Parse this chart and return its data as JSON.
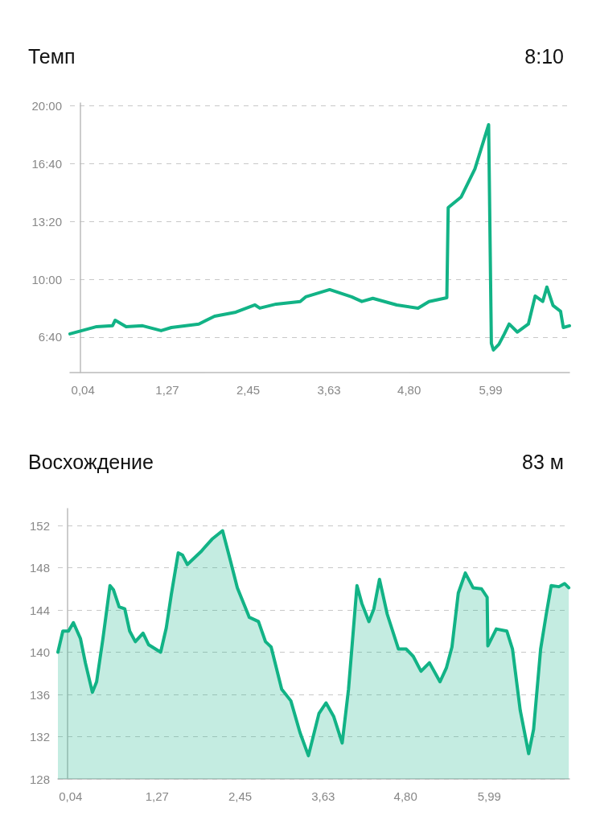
{
  "chart_data": [
    {
      "type": "line",
      "title": "Темп",
      "subtitle": "8:10",
      "color": "#12b386",
      "grid": "y",
      "marker": "none",
      "xlim": [
        -0.15,
        7.14
      ],
      "xticks": [
        {
          "value": 0.04,
          "label": "0,04"
        },
        {
          "value": 1.27,
          "label": "1,27"
        },
        {
          "value": 2.45,
          "label": "2,45"
        },
        {
          "value": 3.63,
          "label": "3,63"
        },
        {
          "value": 4.8,
          "label": "4,80"
        },
        {
          "value": 5.99,
          "label": "5,99"
        }
      ],
      "ylim": [
        277,
        1210
      ],
      "yticks": [
        {
          "value": 400,
          "label": "6:40"
        },
        {
          "value": 600,
          "label": "10:00"
        },
        {
          "value": 800,
          "label": "13:20"
        },
        {
          "value": 1000,
          "label": "16:40"
        },
        {
          "value": 1200,
          "label": "20:00"
        }
      ],
      "x": [
        -0.15,
        0.24,
        0.47,
        0.51,
        0.67,
        0.91,
        1.18,
        1.33,
        1.73,
        1.96,
        2.27,
        2.55,
        2.62,
        2.86,
        3.21,
        3.29,
        3.64,
        3.96,
        4.11,
        4.27,
        4.62,
        4.93,
        5.09,
        5.35,
        5.37,
        5.56,
        5.76,
        5.96,
        6.0,
        6.03,
        6.11,
        6.19,
        6.26,
        6.38,
        6.54,
        6.64,
        6.75,
        6.81,
        6.9,
        7.01,
        7.05,
        7.14
      ],
      "values": [
        411,
        436,
        439,
        458,
        436,
        439,
        422,
        433,
        445,
        472,
        486,
        511,
        500,
        514,
        523,
        539,
        564,
        539,
        523,
        534,
        511,
        500,
        523,
        536,
        848,
        885,
        982,
        1135,
        378,
        355,
        375,
        411,
        445,
        417,
        445,
        542,
        523,
        573,
        509,
        489,
        433,
        439
      ]
    },
    {
      "type": "area",
      "title": "Восхождение",
      "subtitle": "83 м",
      "color": "#12b386",
      "grid": "y",
      "marker": "none",
      "xlim": [
        -0.14,
        7.13
      ],
      "xticks": [
        {
          "value": 0.04,
          "label": "0,04"
        },
        {
          "value": 1.27,
          "label": "1,27"
        },
        {
          "value": 2.45,
          "label": "2,45"
        },
        {
          "value": 3.63,
          "label": "3,63"
        },
        {
          "value": 4.8,
          "label": "4,80"
        },
        {
          "value": 5.99,
          "label": "5,99"
        }
      ],
      "ylim": [
        128,
        153.6
      ],
      "yticks": [
        128,
        132,
        136,
        140,
        144,
        148,
        152
      ],
      "x": [
        -0.14,
        -0.07,
        0.01,
        0.08,
        0.18,
        0.25,
        0.35,
        0.41,
        0.5,
        0.6,
        0.65,
        0.73,
        0.81,
        0.88,
        0.96,
        1.07,
        1.15,
        1.32,
        1.4,
        1.47,
        1.57,
        1.63,
        1.7,
        1.89,
        2.05,
        2.2,
        2.31,
        2.41,
        2.58,
        2.71,
        2.81,
        2.89,
        3.04,
        3.17,
        3.3,
        3.42,
        3.57,
        3.67,
        3.78,
        3.9,
        3.99,
        4.11,
        4.18,
        4.28,
        4.35,
        4.43,
        4.54,
        4.7,
        4.81,
        4.91,
        5.02,
        5.14,
        5.29,
        5.38,
        5.46,
        5.55,
        5.65,
        5.76,
        5.88,
        5.96,
        5.97,
        6.09,
        6.24,
        6.32,
        6.43,
        6.55,
        6.62,
        6.72,
        6.8,
        6.87,
        6.98,
        7.06,
        7.12
      ],
      "values": [
        140.0,
        142.0,
        142.0,
        142.8,
        141.3,
        139.0,
        136.2,
        137.2,
        141.3,
        146.3,
        145.9,
        144.3,
        144.1,
        142.0,
        141.0,
        141.8,
        140.7,
        140.0,
        142.3,
        145.4,
        149.4,
        149.2,
        148.3,
        149.5,
        150.7,
        151.5,
        148.7,
        146.1,
        143.3,
        142.9,
        141.0,
        140.5,
        136.5,
        135.4,
        132.4,
        130.2,
        134.2,
        135.2,
        133.9,
        131.4,
        136.5,
        146.3,
        144.6,
        142.9,
        144.1,
        146.9,
        143.6,
        140.3,
        140.3,
        139.6,
        138.2,
        139.0,
        137.2,
        138.5,
        140.5,
        145.6,
        147.5,
        146.1,
        146.0,
        145.2,
        140.6,
        142.2,
        142.0,
        140.3,
        134.5,
        130.4,
        132.7,
        140.3,
        143.6,
        146.3,
        146.2,
        146.5,
        146.1
      ]
    }
  ]
}
